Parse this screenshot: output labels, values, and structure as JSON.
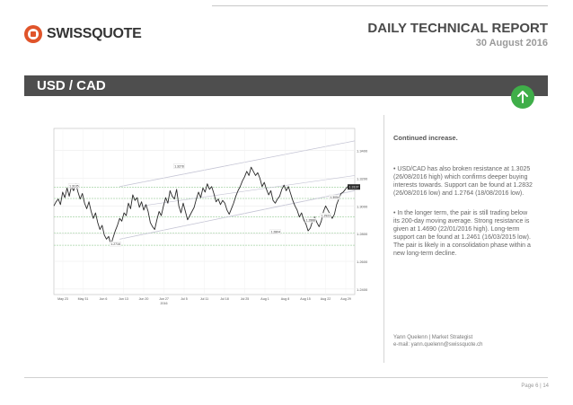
{
  "header": {
    "logo_text": "SWISSQUOTE",
    "report_title": "DAILY TECHNICAL REPORT",
    "report_date": "30 August 2016"
  },
  "banner": {
    "title": "USD / CAD",
    "arrow_icon": "arrow-up-icon",
    "arrow_color": "#3fae49"
  },
  "commentary": {
    "heading": "Continued increase.",
    "paragraph1": "• USD/CAD has also broken resistance at 1.3025 (26/08/2016 high) which confirms deeper buying interests towards. Support can be found at 1.2832 (26/08/2016 low) and 1.2764 (18/08/2016 low).",
    "paragraph2": "• In the longer term, the pair is still trading below its 200-day moving average. Strong resistance is given at 1.4690 (22/01/2016 high). Long-term support can be found at 1.2461 (16/03/2015 low). The pair is likely in a consolidation phase within a new long-term decline."
  },
  "author": {
    "name_line": "Yann Quelenn | Market Strategist",
    "email_line": "e-mail: yann.quelenn@swissquote.ch"
  },
  "footer": {
    "page": "Page 6 | 14"
  },
  "chart_data": {
    "type": "line",
    "x_labels": [
      "May 23",
      "May 31",
      "Jun 6",
      "Jun 13",
      "Jun 20",
      "Jun 27",
      "Jul 5",
      "Jul 11",
      "Jul 18",
      "Jul 25",
      "Aug 1",
      "Aug 8",
      "Aug 15",
      "Aug 22",
      "Aug 29"
    ],
    "x_year": "2016",
    "y_ticks": [
      1.34,
      1.32,
      1.3,
      1.28,
      1.26,
      1.24
    ],
    "ylim": [
      1.236,
      1.356
    ],
    "last_value": 1.3137,
    "colors": {
      "series": "#2a2a2a",
      "trend": "#c4c4d4",
      "levels": "#a6d3a6"
    },
    "series": [
      {
        "values": [
          1.3,
          1.303,
          1.305,
          1.301,
          1.31,
          1.306,
          1.313,
          1.307,
          1.314,
          1.311,
          1.316,
          1.31,
          1.305,
          1.309,
          1.302,
          1.298,
          1.303,
          1.296,
          1.291,
          1.295,
          1.288,
          1.283,
          1.286,
          1.279,
          1.276,
          1.278,
          1.272,
          1.277,
          1.282,
          1.286,
          1.291,
          1.289,
          1.295,
          1.293,
          1.302,
          1.298,
          1.308,
          1.304,
          1.306,
          1.299,
          1.303,
          1.297,
          1.301,
          1.296,
          1.288,
          1.285,
          1.283,
          1.29,
          1.296,
          1.293,
          1.3,
          1.306,
          1.302,
          1.311,
          1.307,
          1.305,
          1.312,
          1.3,
          1.295,
          1.302,
          1.296,
          1.29,
          1.293,
          1.296,
          1.299,
          1.305,
          1.31,
          1.306,
          1.313,
          1.31,
          1.316,
          1.312,
          1.314,
          1.309,
          1.303,
          1.305,
          1.301,
          1.304,
          1.302,
          1.297,
          1.294,
          1.298,
          1.302,
          1.307,
          1.311,
          1.314,
          1.318,
          1.321,
          1.325,
          1.322,
          1.328,
          1.325,
          1.322,
          1.324,
          1.32,
          1.314,
          1.317,
          1.312,
          1.308,
          1.311,
          1.304,
          1.302,
          1.305,
          1.307,
          1.312,
          1.315,
          1.311,
          1.314,
          1.309,
          1.304,
          1.3,
          1.297,
          1.292,
          1.295,
          1.29,
          1.287,
          1.282,
          1.284,
          1.289,
          1.292,
          1.288,
          1.285,
          1.289,
          1.296,
          1.3,
          1.297,
          1.294,
          1.291,
          1.294,
          1.301,
          1.305,
          1.309,
          1.31,
          1.312,
          1.314
        ]
      }
    ],
    "annotations": [
      {
        "x": 55,
        "y": 1.3278,
        "text": "1.3278"
      },
      {
        "x": 126,
        "y": 1.3054,
        "text": "1.3054"
      },
      {
        "x": 7,
        "y": 1.3135,
        "text": "1.3135"
      },
      {
        "x": 26,
        "y": 1.2716,
        "text": "1.2716"
      },
      {
        "x": 99,
        "y": 1.2804,
        "text": "1.2804"
      },
      {
        "x": 115,
        "y": 1.2888,
        "text": "1.2888"
      },
      {
        "x": 122,
        "y": 1.2922,
        "text": "1.2922"
      }
    ]
  }
}
